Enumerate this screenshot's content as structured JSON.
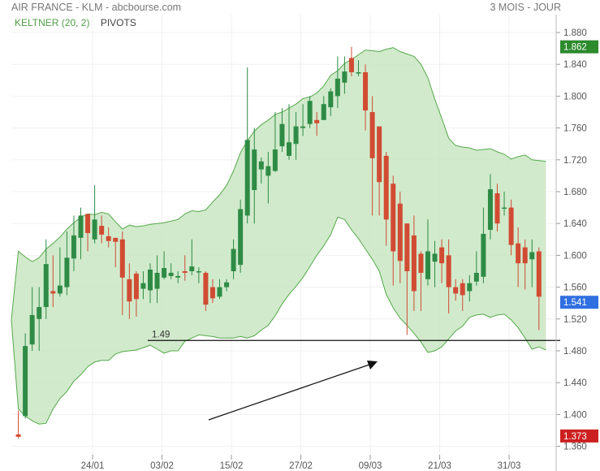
{
  "header": {
    "title": "AIR FRANCE - KLM - abcbourse.com",
    "period": "3 MOIS - JOUR"
  },
  "legend": {
    "keltner": "KELTNER (20, 2)",
    "pivots": "PIVOTS"
  },
  "colors": {
    "up": "#2e8b45",
    "down": "#d14b33",
    "band_fill": "#c9e6c3",
    "band_line": "#55a94a",
    "badge_green": "#2d8a2d",
    "badge_blue": "#2f6fe0",
    "badge_red": "#cc1f1f"
  },
  "chart_data": {
    "type": "candlestick",
    "y_range": [
      1.36,
      1.9
    ],
    "y_ticks": [
      "1.880",
      "1.840",
      "1.800",
      "1.760",
      "1.720",
      "1.680",
      "1.640",
      "1.600",
      "1.560",
      "1.520",
      "1.480",
      "1.440",
      "1.400",
      "1.360"
    ],
    "x_labels": [
      "24/01",
      "03/02",
      "15/02",
      "27/02",
      "09/03",
      "21/03",
      "31/03"
    ],
    "badges": [
      {
        "value": "1.862",
        "color": "badge_green"
      },
      {
        "value": "1.541",
        "color": "badge_blue"
      },
      {
        "value": "1.373",
        "color": "badge_red"
      }
    ],
    "candles": [
      [
        1.375,
        1.372,
        1.405,
        1.37
      ],
      [
        1.398,
        1.486,
        1.502,
        1.395
      ],
      [
        1.488,
        1.525,
        1.56,
        1.48
      ],
      [
        1.52,
        1.535,
        1.56,
        1.48
      ],
      [
        1.535,
        1.589,
        1.62,
        1.52
      ],
      [
        1.555,
        1.552,
        1.6,
        1.535
      ],
      [
        1.552,
        1.562,
        1.61,
        1.548
      ],
      [
        1.56,
        1.597,
        1.63,
        1.55
      ],
      [
        1.596,
        1.625,
        1.65,
        1.58
      ],
      [
        1.622,
        1.65,
        1.66,
        1.595
      ],
      [
        1.652,
        1.628,
        1.65,
        1.605
      ],
      [
        1.62,
        1.645,
        1.688,
        1.615
      ],
      [
        1.637,
        1.626,
        1.65,
        1.615
      ],
      [
        1.624,
        1.618,
        1.635,
        1.61
      ],
      [
        1.622,
        1.617,
        1.62,
        1.585
      ],
      [
        1.62,
        1.572,
        1.63,
        1.525
      ],
      [
        1.57,
        1.542,
        1.59,
        1.52
      ],
      [
        1.577,
        1.545,
        1.58,
        1.523
      ],
      [
        1.558,
        1.565,
        1.58,
        1.545
      ],
      [
        1.556,
        1.582,
        1.59,
        1.54
      ],
      [
        1.558,
        1.578,
        1.6,
        1.54
      ],
      [
        1.572,
        1.584,
        1.605,
        1.57
      ],
      [
        1.574,
        1.578,
        1.59,
        1.57
      ],
      [
        1.572,
        1.574,
        1.58,
        1.565
      ],
      [
        1.58,
        1.578,
        1.6,
        1.568
      ],
      [
        1.58,
        1.586,
        1.62,
        1.575
      ],
      [
        1.58,
        1.58,
        1.585,
        1.565
      ],
      [
        1.578,
        1.538,
        1.58,
        1.53
      ],
      [
        1.56,
        1.546,
        1.57,
        1.54
      ],
      [
        1.548,
        1.56,
        1.57,
        1.545
      ],
      [
        1.56,
        1.566,
        1.57,
        1.555
      ],
      [
        1.58,
        1.608,
        1.62,
        1.57
      ],
      [
        1.588,
        1.658,
        1.67,
        1.578
      ],
      [
        1.65,
        1.745,
        1.836,
        1.64
      ],
      [
        1.682,
        1.733,
        1.76,
        1.64
      ],
      [
        1.708,
        1.718,
        1.723,
        1.69
      ],
      [
        1.7,
        1.712,
        1.73,
        1.665
      ],
      [
        1.706,
        1.733,
        1.78,
        1.705
      ],
      [
        1.737,
        1.765,
        1.785,
        1.73
      ],
      [
        1.725,
        1.742,
        1.79,
        1.72
      ],
      [
        1.74,
        1.762,
        1.78,
        1.72
      ],
      [
        1.76,
        1.762,
        1.79,
        1.75
      ],
      [
        1.765,
        1.794,
        1.8,
        1.76
      ],
      [
        1.77,
        1.766,
        1.78,
        1.75
      ],
      [
        1.77,
        1.79,
        1.8,
        1.77
      ],
      [
        1.786,
        1.806,
        1.81,
        1.775
      ],
      [
        1.8,
        1.822,
        1.85,
        1.785
      ],
      [
        1.817,
        1.831,
        1.85,
        1.803
      ],
      [
        1.848,
        1.83,
        1.862,
        1.825
      ],
      [
        1.83,
        1.83,
        1.845,
        1.825
      ],
      [
        1.83,
        1.782,
        1.84,
        1.757
      ],
      [
        1.78,
        1.722,
        1.8,
        1.65
      ],
      [
        1.762,
        1.692,
        1.76,
        1.65
      ],
      [
        1.725,
        1.645,
        1.73,
        1.612
      ],
      [
        1.69,
        1.605,
        1.7,
        1.562
      ],
      [
        1.665,
        1.593,
        1.68,
        1.565
      ],
      [
        1.64,
        1.58,
        1.64,
        1.5
      ],
      [
        1.625,
        1.555,
        1.65,
        1.53
      ],
      [
        1.602,
        1.578,
        1.605,
        1.53
      ],
      [
        1.57,
        1.605,
        1.645,
        1.562
      ],
      [
        1.592,
        1.602,
        1.618,
        1.56
      ],
      [
        1.61,
        1.59,
        1.62,
        1.565
      ],
      [
        1.6,
        1.56,
        1.62,
        1.527
      ],
      [
        1.56,
        1.552,
        1.57,
        1.543
      ],
      [
        1.565,
        1.55,
        1.57,
        1.53
      ],
      [
        1.555,
        1.565,
        1.575,
        1.542
      ],
      [
        1.567,
        1.578,
        1.605,
        1.562
      ],
      [
        1.573,
        1.627,
        1.66,
        1.565
      ],
      [
        1.632,
        1.683,
        1.702,
        1.62
      ],
      [
        1.678,
        1.64,
        1.69,
        1.63
      ],
      [
        1.66,
        1.66,
        1.68,
        1.65
      ],
      [
        1.66,
        1.613,
        1.67,
        1.6
      ],
      [
        1.615,
        1.59,
        1.635,
        1.56
      ],
      [
        1.61,
        1.59,
        1.62,
        1.557
      ],
      [
        1.595,
        1.604,
        1.62,
        1.56
      ],
      [
        1.605,
        1.548,
        1.61,
        1.506
      ]
    ],
    "band_upper": [
      1.519,
      1.605,
      1.598,
      1.592,
      1.597,
      1.608,
      1.615,
      1.623,
      1.633,
      1.641,
      1.648,
      1.652,
      1.651,
      1.654,
      1.652,
      1.642,
      1.633,
      1.638,
      1.636,
      1.637,
      1.639,
      1.64,
      1.641,
      1.643,
      1.645,
      1.652,
      1.656,
      1.655,
      1.657,
      1.667,
      1.676,
      1.688,
      1.706,
      1.729,
      1.744,
      1.756,
      1.764,
      1.77,
      1.777,
      1.78,
      1.785,
      1.79,
      1.797,
      1.799,
      1.804,
      1.813,
      1.826,
      1.832,
      1.841,
      1.846,
      1.852,
      1.858,
      1.857,
      1.856,
      1.859,
      1.861,
      1.856,
      1.853,
      1.85,
      1.84,
      1.823,
      1.796,
      1.772,
      1.747,
      1.738,
      1.736,
      1.735,
      1.732,
      1.733,
      1.734,
      1.73,
      1.727,
      1.721,
      1.724,
      1.726,
      1.72,
      1.719,
      1.718
    ],
    "band_lower": [
      1.519,
      1.407,
      1.398,
      1.392,
      1.388,
      1.389,
      1.407,
      1.42,
      1.429,
      1.442,
      1.45,
      1.46,
      1.466,
      1.468,
      1.468,
      1.476,
      1.479,
      1.48,
      1.481,
      1.484,
      1.487,
      1.482,
      1.477,
      1.48,
      1.48,
      1.492,
      1.496,
      1.5,
      1.499,
      1.498,
      1.496,
      1.496,
      1.496,
      1.498,
      1.496,
      1.499,
      1.506,
      1.512,
      1.524,
      1.539,
      1.551,
      1.561,
      1.572,
      1.586,
      1.6,
      1.612,
      1.626,
      1.648,
      1.645,
      1.632,
      1.621,
      1.608,
      1.595,
      1.58,
      1.551,
      1.534,
      1.521,
      1.512,
      1.502,
      1.491,
      1.478,
      1.48,
      1.485,
      1.495,
      1.505,
      1.511,
      1.522,
      1.525,
      1.526,
      1.522,
      1.525,
      1.526,
      1.519,
      1.509,
      1.496,
      1.482,
      1.485,
      1.481
    ],
    "pivot": {
      "label": "1.49",
      "value": 1.493
    }
  }
}
